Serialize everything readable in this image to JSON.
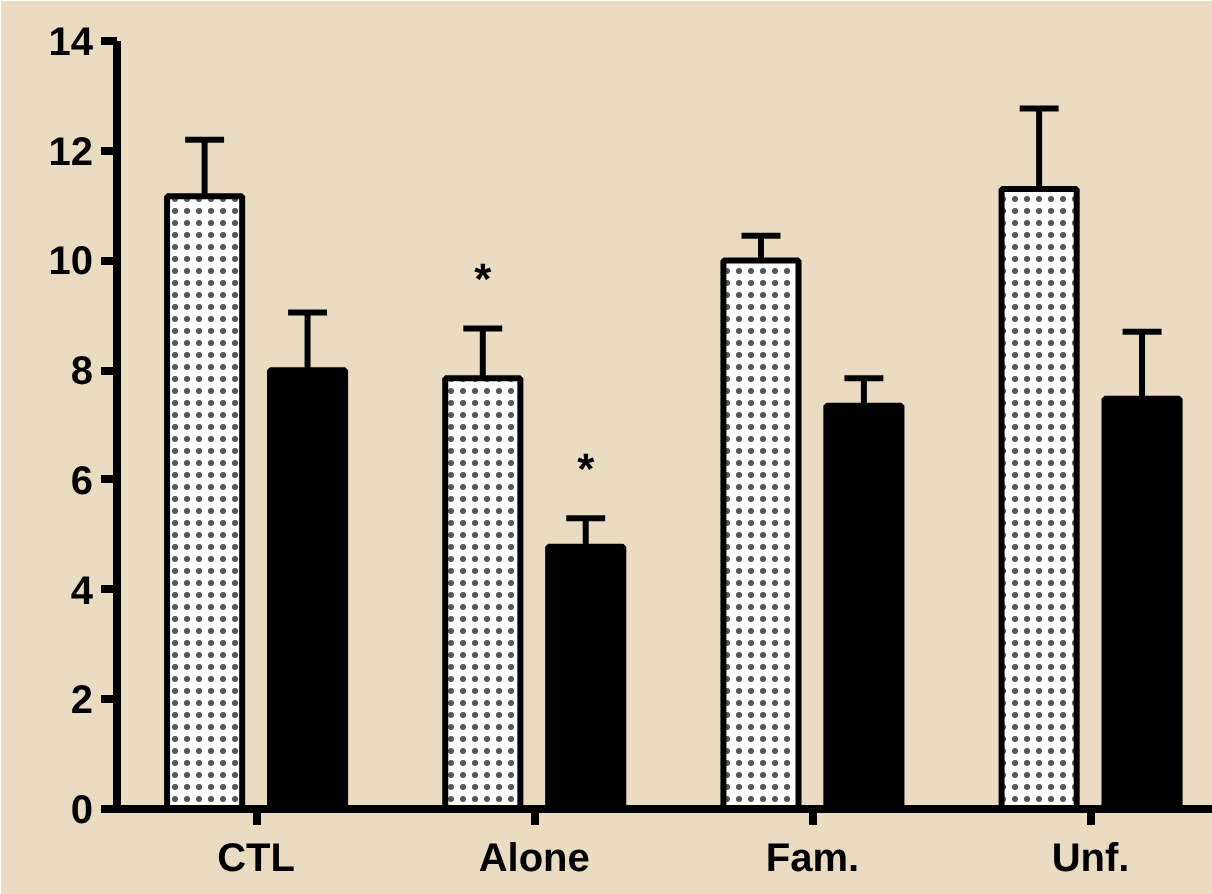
{
  "chart_data": {
    "type": "bar",
    "categories": [
      "CTL",
      "Alone",
      "Fam.",
      "Unf."
    ],
    "series": [
      {
        "color": "#ffffff",
        "values": [
          11.17,
          7.85,
          10.0,
          11.3
        ],
        "errors": [
          [
            11.17,
            12.2
          ],
          [
            7.85,
            8.76
          ],
          [
            10.0,
            10.45
          ],
          [
            11.3,
            12.77
          ]
        ]
      },
      {
        "color": "#000000",
        "values": [
          8.0,
          4.78,
          7.35,
          7.48
        ],
        "errors": [
          [
            8.0,
            9.05
          ],
          [
            4.78,
            5.3
          ],
          [
            7.35,
            7.85
          ],
          [
            7.48,
            8.7
          ]
        ]
      }
    ],
    "annotations": [
      "*",
      "*"
    ],
    "ylim": [
      0,
      14
    ],
    "yticks": [
      0,
      2,
      4,
      6,
      8,
      10,
      12,
      14
    ],
    "grid": false
  }
}
